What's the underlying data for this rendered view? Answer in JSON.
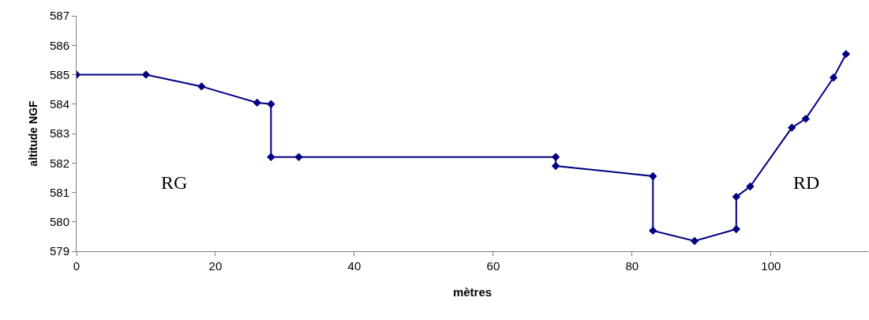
{
  "chart_data": {
    "type": "line",
    "xlabel": "mètres",
    "ylabel": "altitude NGF",
    "x": [
      0,
      10,
      18,
      26,
      28,
      28,
      32,
      69,
      69,
      83,
      83,
      89,
      95,
      95,
      97,
      103,
      105,
      109,
      110.8
    ],
    "series": [
      {
        "color": "#000080",
        "values": [
          585.0,
          585.0,
          584.6,
          584.05,
          584.0,
          582.2,
          582.2,
          582.2,
          581.9,
          581.55,
          579.7,
          579.35,
          579.75,
          580.85,
          581.2,
          583.2,
          583.5,
          584.9,
          585.7
        ]
      }
    ],
    "xlim": [
      0,
      114
    ],
    "xticks": [
      0,
      20,
      40,
      60,
      80,
      100
    ],
    "ylim": [
      579,
      587
    ],
    "yticks": [
      579,
      580,
      581,
      582,
      583,
      584,
      585,
      586,
      587
    ],
    "annotations": [
      "RG",
      "RD"
    ],
    "legend": false,
    "marker": "diamond",
    "line_style": "solid"
  }
}
